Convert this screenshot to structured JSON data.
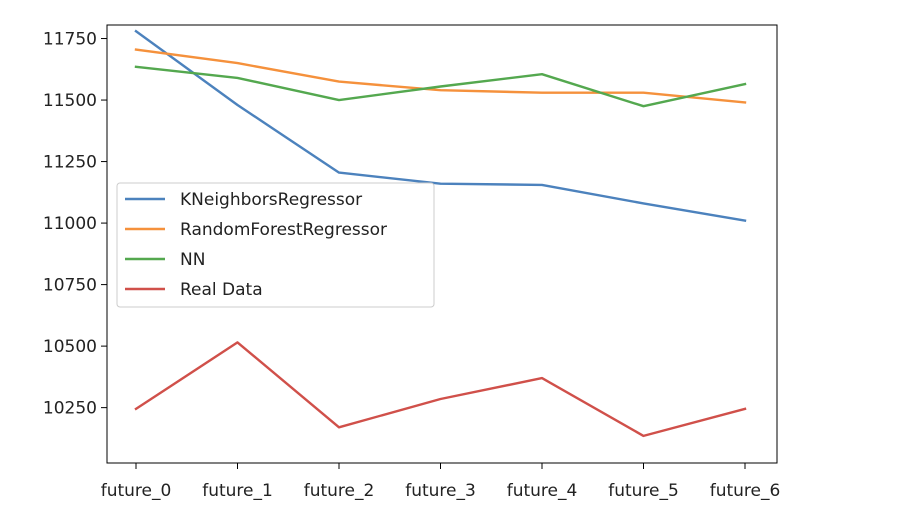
{
  "chart_data": {
    "type": "line",
    "title": "",
    "xlabel": "",
    "ylabel": "",
    "categories": [
      "future_0",
      "future_1",
      "future_2",
      "future_3",
      "future_4",
      "future_5",
      "future_6"
    ],
    "ylim": [
      10025,
      11805
    ],
    "yticks": [
      10250,
      10500,
      10750,
      11000,
      11250,
      11500,
      11750
    ],
    "grid": false,
    "legend_position": "center-left",
    "series": [
      {
        "name": "KNeighborsRegressor",
        "color": "#4c82bd",
        "values": [
          11780,
          11480,
          11205,
          11160,
          11155,
          11080,
          11010
        ]
      },
      {
        "name": "RandomForestRegressor",
        "color": "#f5913c",
        "values": [
          11705,
          11650,
          11575,
          11540,
          11530,
          11530,
          11490
        ]
      },
      {
        "name": "NN",
        "color": "#54a84f",
        "values": [
          11635,
          11590,
          11500,
          11555,
          11605,
          11475,
          11565
        ]
      },
      {
        "name": "Real Data",
        "color": "#d0504a",
        "values": [
          10245,
          10515,
          10170,
          10285,
          10370,
          10135,
          10245
        ]
      }
    ]
  }
}
